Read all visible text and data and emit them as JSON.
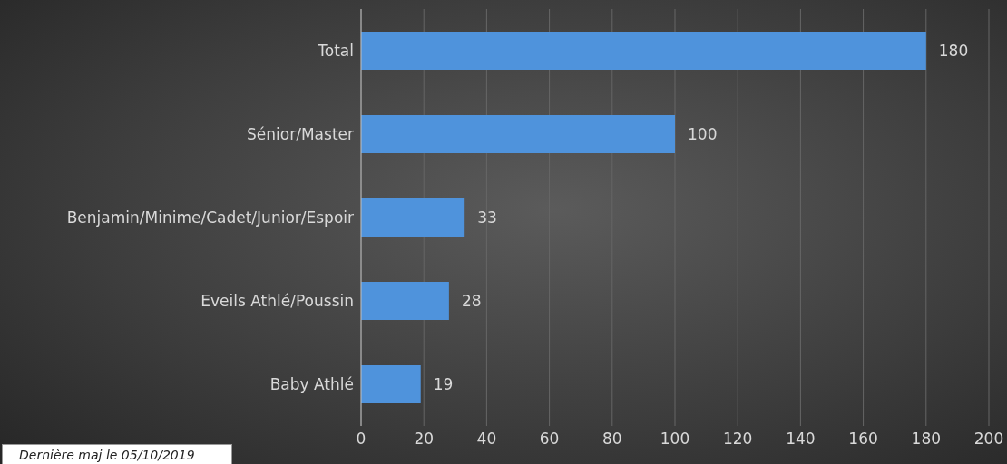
{
  "chart_data": {
    "type": "bar",
    "orientation": "horizontal",
    "categories": [
      "Total",
      "Sénior/Master",
      "Benjamin/Minime/Cadet/Junior/Espoir",
      "Eveils Athlé/Poussin",
      "Baby Athlé"
    ],
    "values": [
      180,
      100,
      33,
      28,
      19
    ],
    "color": "#4f93dc",
    "xlim": [
      0,
      200
    ],
    "xticks": [
      0,
      20,
      40,
      60,
      80,
      100,
      120,
      140,
      160,
      180,
      200
    ],
    "grid": "x",
    "data_labels": true,
    "annotations": [
      "Dernière maj le 05/10/2019"
    ]
  }
}
